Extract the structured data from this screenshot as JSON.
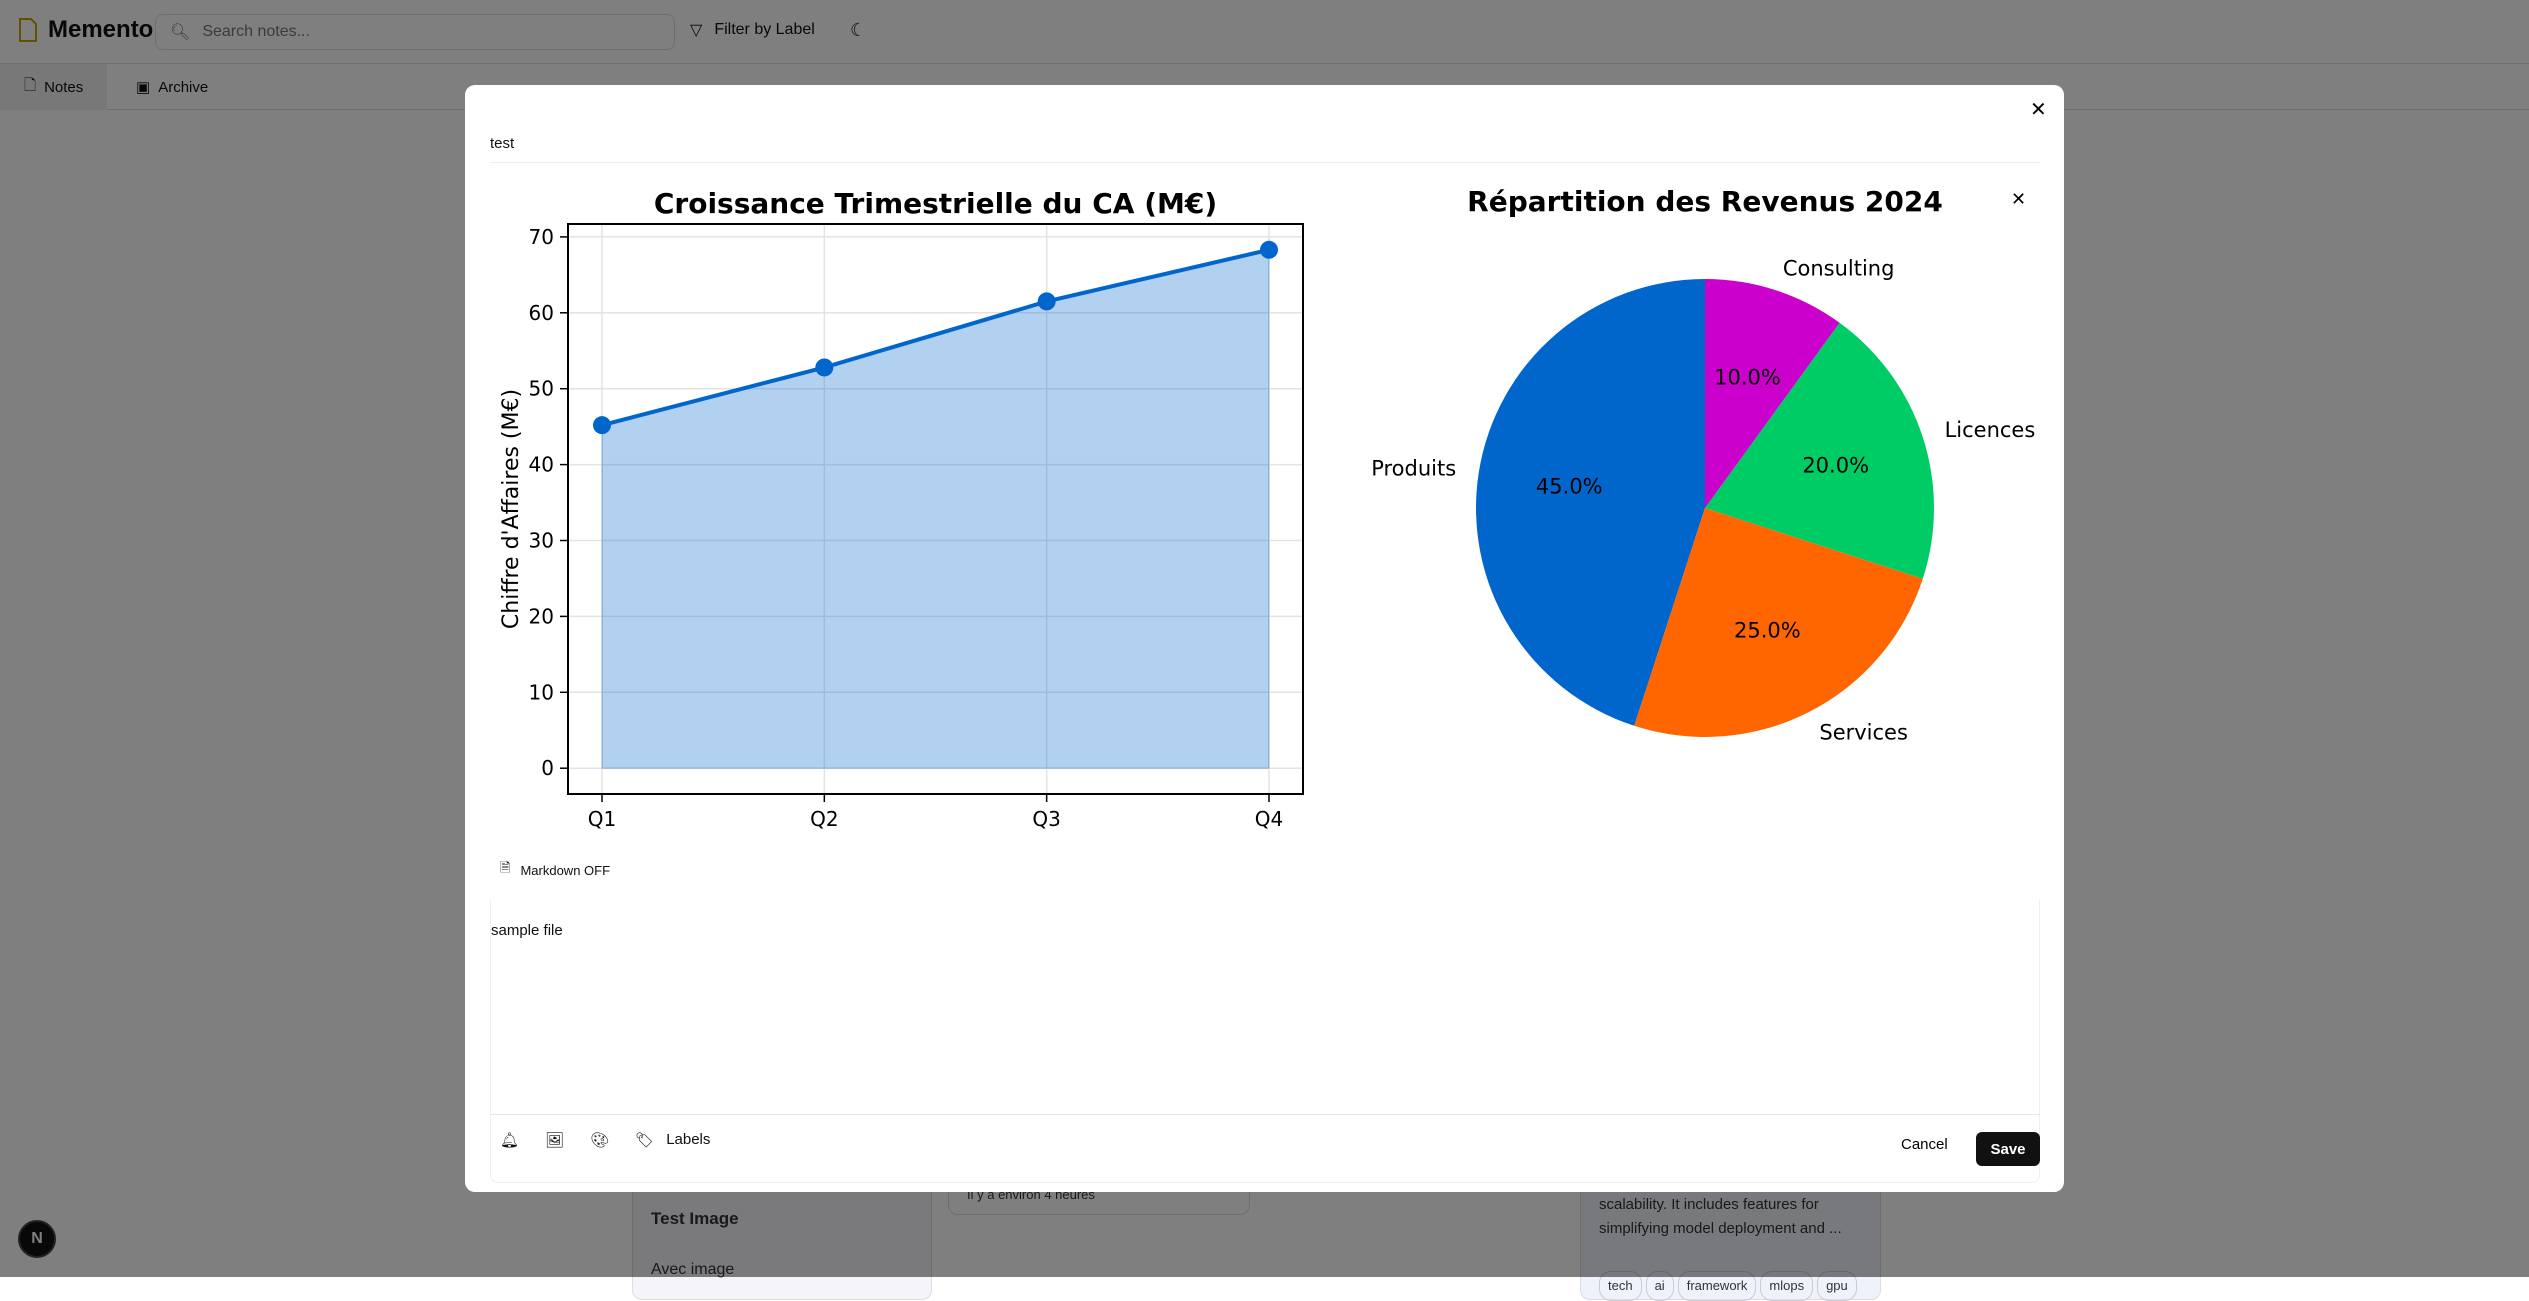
{
  "app": {
    "name": "Memento",
    "search_placeholder": "Search notes...",
    "filter_label": "Filter by Label",
    "theme_icon": "moon-icon"
  },
  "tabs": [
    {
      "label": "Notes",
      "icon": "file-icon"
    },
    {
      "label": "Archive",
      "icon": "archive-icon"
    }
  ],
  "background_cards": [
    {
      "title": "Test Image",
      "body": "Avec image"
    },
    {
      "meta": "Il y a environ 4 heures"
    },
    {
      "body": "scalability. It includes features for simplifying model deployment and ...",
      "tags": [
        "tech",
        "ai",
        "framework",
        "mlops",
        "gpu"
      ]
    }
  ],
  "modal": {
    "title": "test",
    "markdown_label": "Markdown OFF",
    "content": "sample file",
    "labels_label": "Labels",
    "cancel_label": "Cancel",
    "save_label": "Save"
  },
  "chart_data": [
    {
      "type": "area",
      "title": "Croissance Trimestrielle du CA (M€)",
      "ylabel": "Chiffre d'Affaires (M€)",
      "xlabel": "",
      "categories": [
        "Q1",
        "Q2",
        "Q3",
        "Q4"
      ],
      "values": [
        45.2,
        52.8,
        61.5,
        68.3
      ],
      "ylim": [
        -3.4,
        71.7
      ],
      "yticks": [
        0,
        10,
        20,
        30,
        40,
        50,
        60,
        70
      ],
      "grid": true,
      "color": "#0066cc"
    },
    {
      "type": "pie",
      "title": "Répartition des Revenus 2024",
      "labels": [
        "Produits",
        "Services",
        "Licences",
        "Consulting"
      ],
      "values": [
        45,
        25,
        20,
        10
      ],
      "pct_labels": [
        "45.0%",
        "25.0%",
        "20.0%",
        "10.0%"
      ],
      "colors": [
        "#0066cc",
        "#ff6600",
        "#00cc66",
        "#cc00cc"
      ],
      "startangle": 90
    }
  ]
}
